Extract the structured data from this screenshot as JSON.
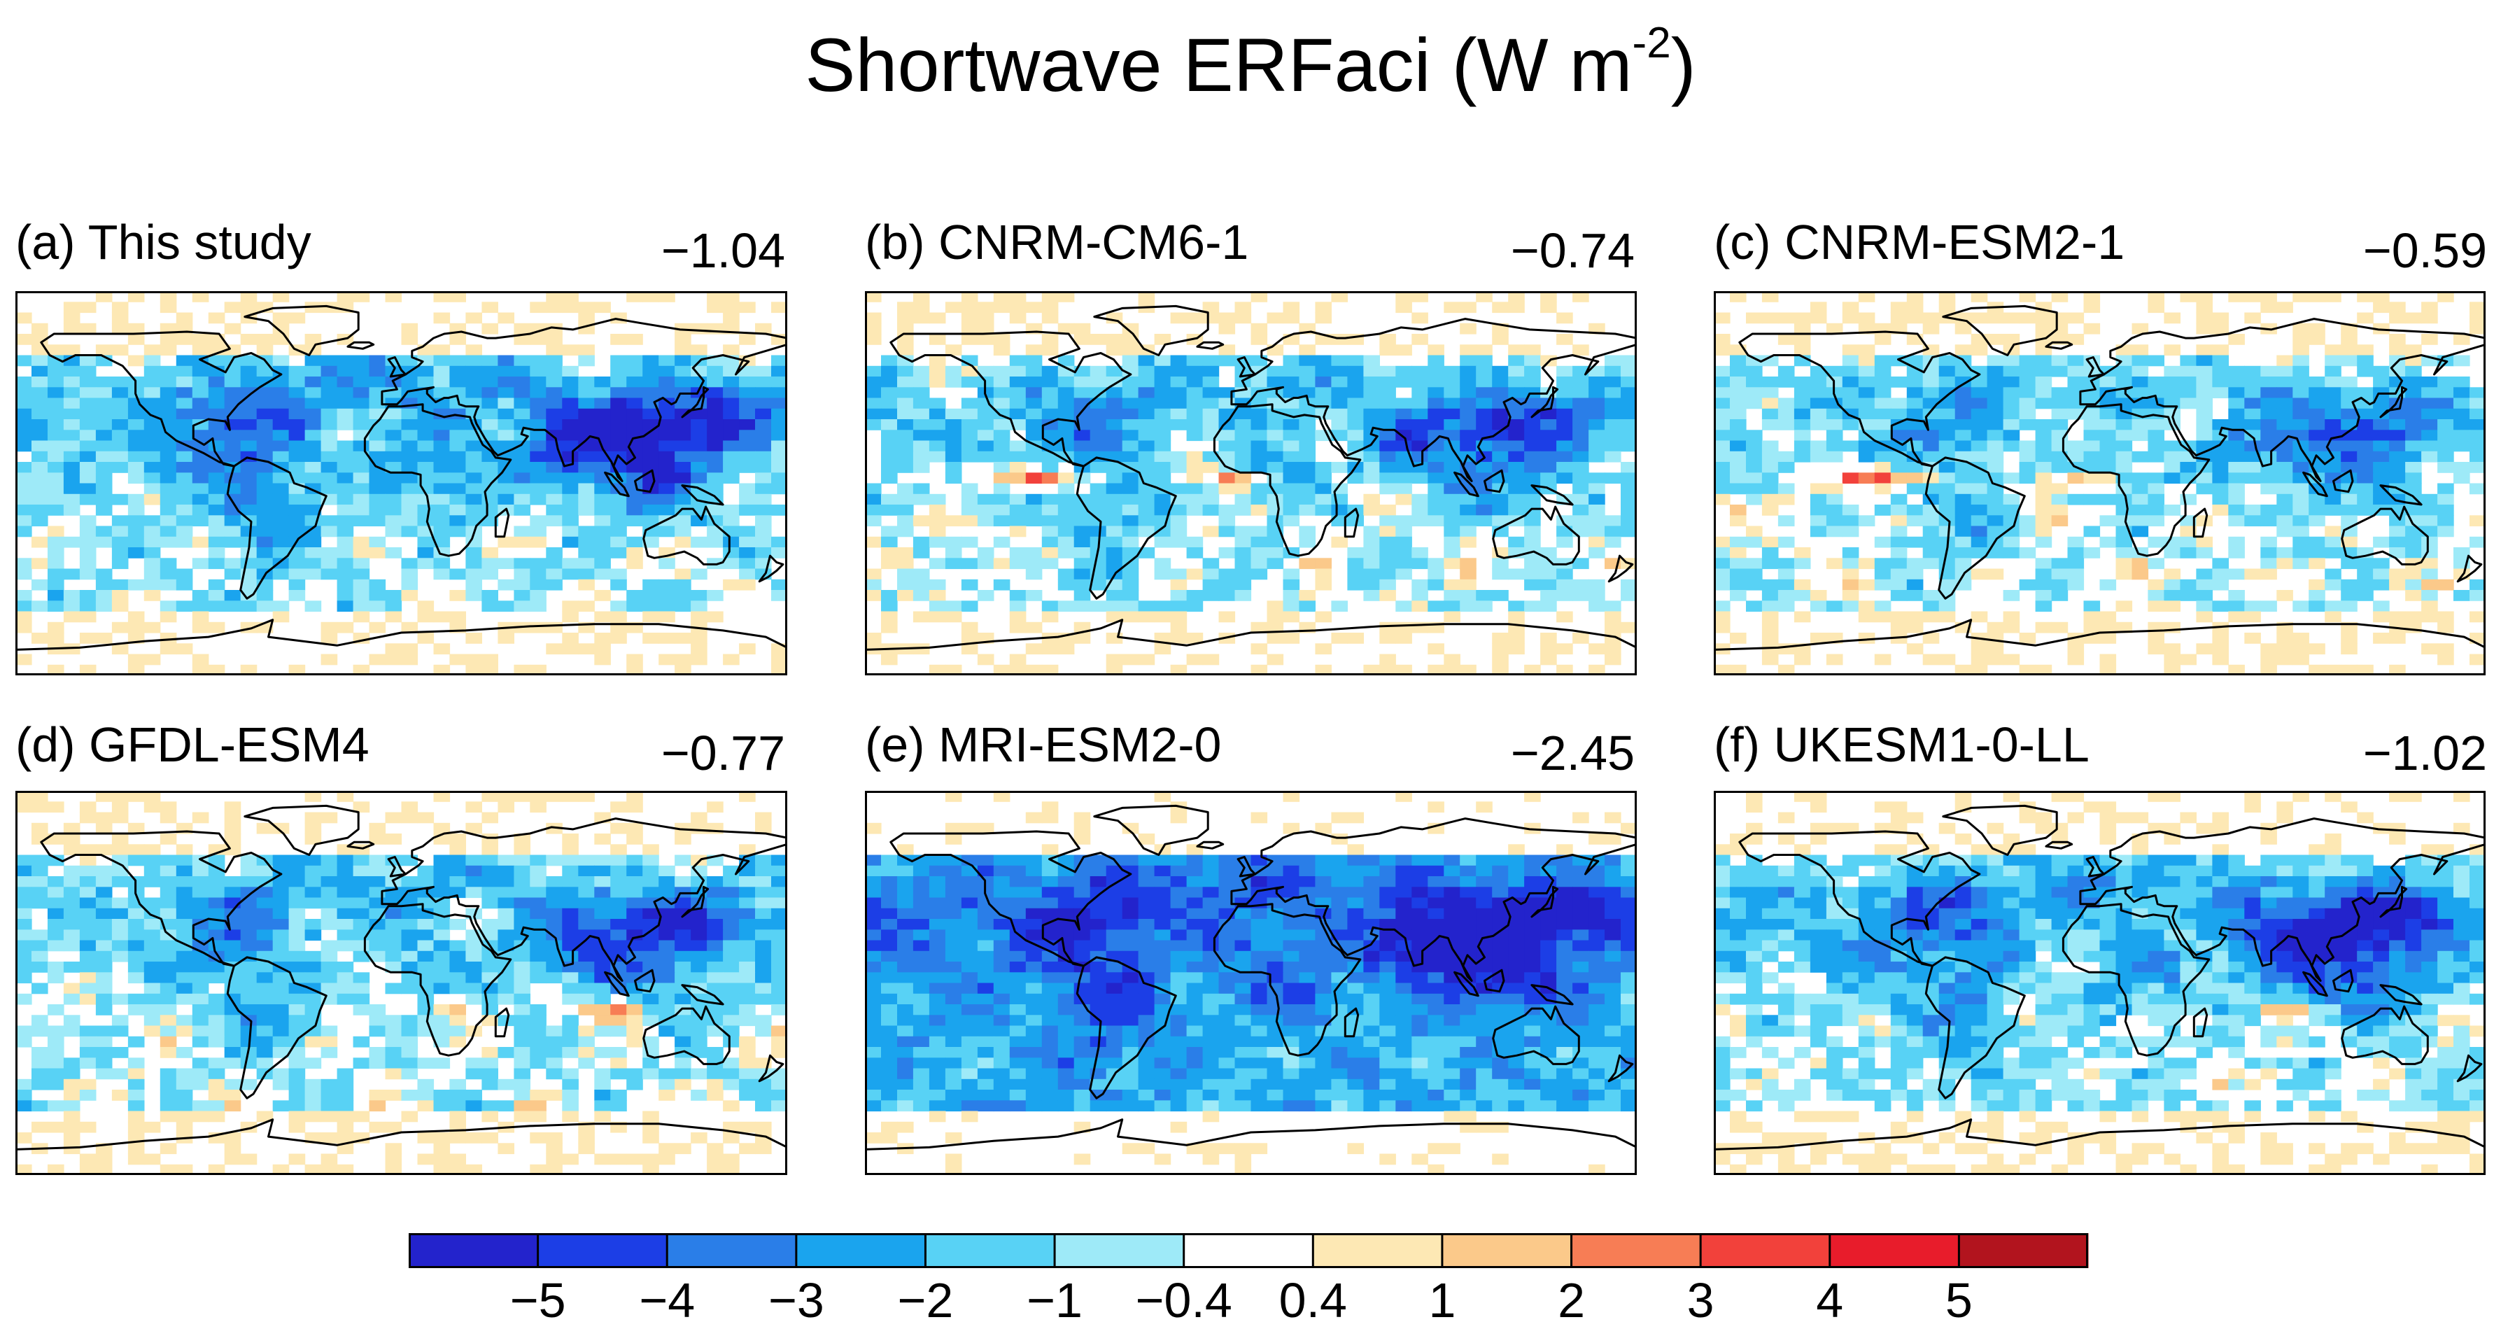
{
  "title": {
    "text": "Shortwave ERFaci (W m",
    "sup": "-2",
    "close": ")"
  },
  "chart_data": {
    "type": "heatmap",
    "title": "Shortwave ERFaci (W m-2)",
    "units": "W m-2",
    "layout": "2 rows x 3 columns of global maps",
    "colorbar": {
      "levels": [
        -5,
        -4,
        -3,
        -2,
        -1,
        -0.4,
        0.4,
        1,
        2,
        3,
        4,
        5
      ],
      "tick_labels": [
        "−5",
        "−4",
        "−3",
        "−2",
        "−1",
        "−0.4",
        "0.4",
        "1",
        "2",
        "3",
        "4",
        "5"
      ],
      "colors": [
        "#2323cc",
        "#1c3ee6",
        "#2a7ee8",
        "#1aa4ee",
        "#58d2f5",
        "#9eeaf8",
        "#ffffff",
        "#fde8b4",
        "#fbc98a",
        "#f77d55",
        "#f2413b",
        "#e81c2b",
        "#b2141e"
      ],
      "orientation": "horizontal"
    },
    "panels": [
      {
        "id": "a",
        "label": "(a) This study",
        "global_mean": -1.04,
        "global_mean_text": "−1.04"
      },
      {
        "id": "b",
        "label": "(b) CNRM-CM6-1",
        "global_mean": -0.74,
        "global_mean_text": "−0.74"
      },
      {
        "id": "c",
        "label": "(c) CNRM-ESM2-1",
        "global_mean": -0.59,
        "global_mean_text": "−0.59"
      },
      {
        "id": "d",
        "label": "(d) GFDL-ESM4",
        "global_mean": -0.77,
        "global_mean_text": "−0.77"
      },
      {
        "id": "e",
        "label": "(e) MRI-ESM2-0",
        "global_mean": -2.45,
        "global_mean_text": "−2.45"
      },
      {
        "id": "f",
        "label": "(f) UKESM1-0-LL",
        "global_mean": -1.02,
        "global_mean_text": "−1.02"
      }
    ]
  }
}
